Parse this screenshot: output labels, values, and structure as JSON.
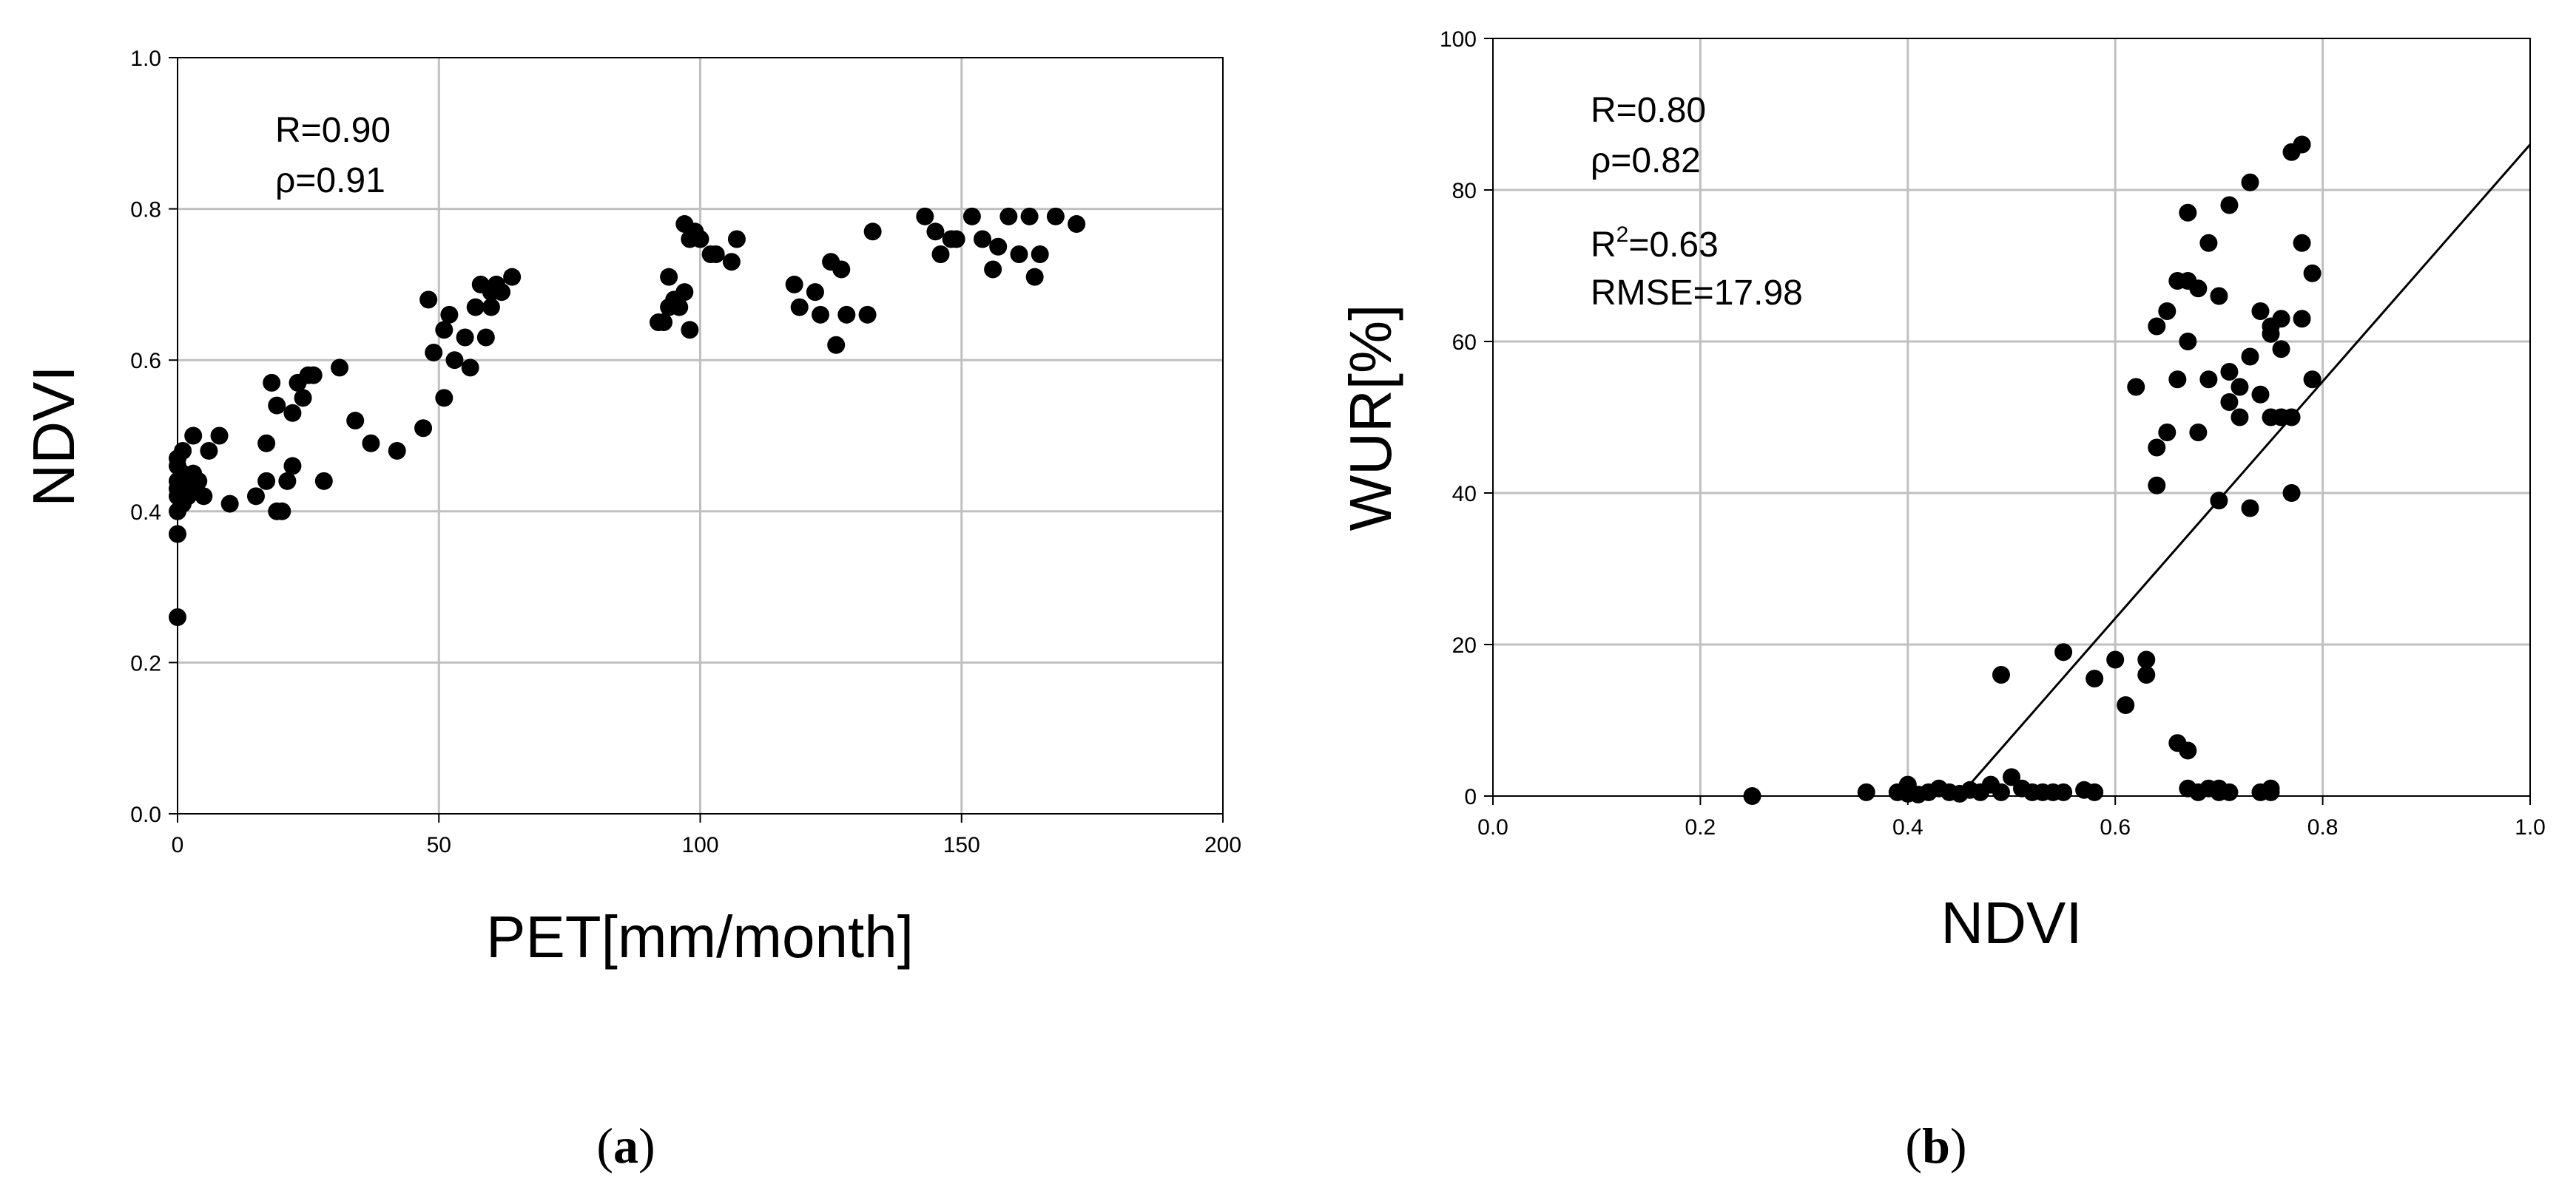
{
  "figure": {
    "panels": [
      {
        "label_open": "(",
        "label_letter": "a",
        "label_close": ")"
      },
      {
        "label_open": "(",
        "label_letter": "b",
        "label_close": ")"
      }
    ]
  },
  "chart_data": [
    {
      "type": "scatter",
      "xlabel": "PET[mm/month]",
      "ylabel": "NDVI",
      "xlim": [
        0,
        200
      ],
      "ylim": [
        0.0,
        1.0
      ],
      "xticks": [
        "0",
        "50",
        "100",
        "150",
        "200"
      ],
      "yticks": [
        "0.0",
        "0.2",
        "0.4",
        "0.6",
        "0.8",
        "1.0"
      ],
      "grid": true,
      "annotations": [
        "R=0.90",
        "ρ=0.91"
      ],
      "points": {
        "x": [
          0,
          0,
          0,
          0,
          0,
          0,
          0,
          0,
          1,
          1,
          1,
          2,
          2,
          3,
          3,
          3,
          4,
          5,
          6,
          8,
          10,
          15,
          17,
          17,
          18,
          19,
          19,
          20,
          21,
          22,
          22,
          23,
          24,
          25,
          26,
          28,
          31,
          34,
          37,
          42,
          47,
          48,
          49,
          51,
          51,
          52,
          53,
          55,
          56,
          57,
          58,
          59,
          60,
          60,
          61,
          62,
          64,
          92,
          93,
          94,
          94,
          95,
          96,
          97,
          97,
          98,
          98,
          99,
          100,
          102,
          103,
          106,
          107,
          118,
          119,
          122,
          123,
          125,
          126,
          127,
          128,
          132,
          133,
          143,
          145,
          146,
          148,
          149,
          152,
          154,
          156,
          157,
          159,
          161,
          163,
          164,
          165,
          168,
          172
        ],
        "y": [
          0.26,
          0.37,
          0.4,
          0.42,
          0.43,
          0.44,
          0.46,
          0.47,
          0.41,
          0.45,
          0.48,
          0.42,
          0.44,
          0.43,
          0.45,
          0.5,
          0.44,
          0.42,
          0.48,
          0.5,
          0.41,
          0.42,
          0.44,
          0.49,
          0.57,
          0.4,
          0.54,
          0.4,
          0.44,
          0.46,
          0.53,
          0.57,
          0.55,
          0.58,
          0.58,
          0.44,
          0.59,
          0.52,
          0.49,
          0.48,
          0.51,
          0.68,
          0.61,
          0.55,
          0.64,
          0.66,
          0.6,
          0.63,
          0.59,
          0.67,
          0.7,
          0.63,
          0.69,
          0.67,
          0.7,
          0.69,
          0.71,
          0.65,
          0.65,
          0.67,
          0.71,
          0.68,
          0.67,
          0.69,
          0.78,
          0.64,
          0.76,
          0.77,
          0.76,
          0.74,
          0.74,
          0.73,
          0.76,
          0.7,
          0.67,
          0.69,
          0.66,
          0.73,
          0.62,
          0.72,
          0.66,
          0.66,
          0.77,
          0.79,
          0.77,
          0.74,
          0.76,
          0.76,
          0.79,
          0.76,
          0.72,
          0.75,
          0.79,
          0.74,
          0.79,
          0.71,
          0.74,
          0.79,
          0.78
        ]
      }
    },
    {
      "type": "scatter",
      "xlabel": "NDVI",
      "ylabel": "WUR[%]",
      "xlim": [
        0.0,
        1.0
      ],
      "ylim": [
        0,
        100
      ],
      "xticks": [
        "0.0",
        "0.2",
        "0.4",
        "0.6",
        "0.8",
        "1.0"
      ],
      "yticks": [
        "0",
        "20",
        "40",
        "60",
        "80",
        "100"
      ],
      "grid": true,
      "annotations": {
        "r": "R=0.80",
        "rho": "ρ=0.82",
        "r2_prefix": "R",
        "r2_sup": "2",
        "r2_value": "=0.63",
        "rmse": "RMSE=17.98"
      },
      "regression_line": {
        "x": [
          0.45,
          1.0
        ],
        "y": [
          0,
          86
        ]
      },
      "points": {
        "x": [
          0.25,
          0.36,
          0.39,
          0.4,
          0.4,
          0.41,
          0.42,
          0.43,
          0.44,
          0.45,
          0.46,
          0.47,
          0.48,
          0.49,
          0.49,
          0.5,
          0.51,
          0.52,
          0.53,
          0.54,
          0.55,
          0.57,
          0.58,
          0.55,
          0.58,
          0.6,
          0.61,
          0.62,
          0.63,
          0.63,
          0.64,
          0.65,
          0.64,
          0.64,
          0.65,
          0.66,
          0.66,
          0.67,
          0.67,
          0.67,
          0.68,
          0.68,
          0.69,
          0.69,
          0.7,
          0.7,
          0.71,
          0.71,
          0.71,
          0.72,
          0.72,
          0.73,
          0.73,
          0.74,
          0.74,
          0.75,
          0.75,
          0.75,
          0.76,
          0.76,
          0.76,
          0.77,
          0.77,
          0.78,
          0.78,
          0.78,
          0.79,
          0.79,
          0.73,
          0.77,
          0.66,
          0.67,
          0.67,
          0.68,
          0.69,
          0.7,
          0.7,
          0.71,
          0.74,
          0.75,
          0.75
        ],
        "y": [
          0,
          0.5,
          0.5,
          1.5,
          0.3,
          0.2,
          0.5,
          1.0,
          0.5,
          0.3,
          0.8,
          0.5,
          1.5,
          16,
          0.5,
          2.5,
          1.0,
          0.5,
          0.5,
          0.5,
          19,
          0.8,
          0.5,
          0.5,
          15.5,
          18,
          12,
          54,
          18,
          16,
          46,
          48,
          41,
          62,
          64,
          55,
          68,
          60,
          77,
          68,
          67,
          48,
          73,
          55,
          66,
          39,
          78,
          52,
          56,
          50,
          54,
          58,
          38,
          53,
          64,
          50,
          61,
          62,
          50,
          59,
          63,
          40,
          85,
          73,
          63,
          86,
          69,
          55,
          81,
          50,
          7,
          6,
          1.0,
          0.5,
          1.0,
          0.5,
          1.0,
          0.5,
          0.5,
          1.0,
          0.5
        ]
      }
    }
  ]
}
